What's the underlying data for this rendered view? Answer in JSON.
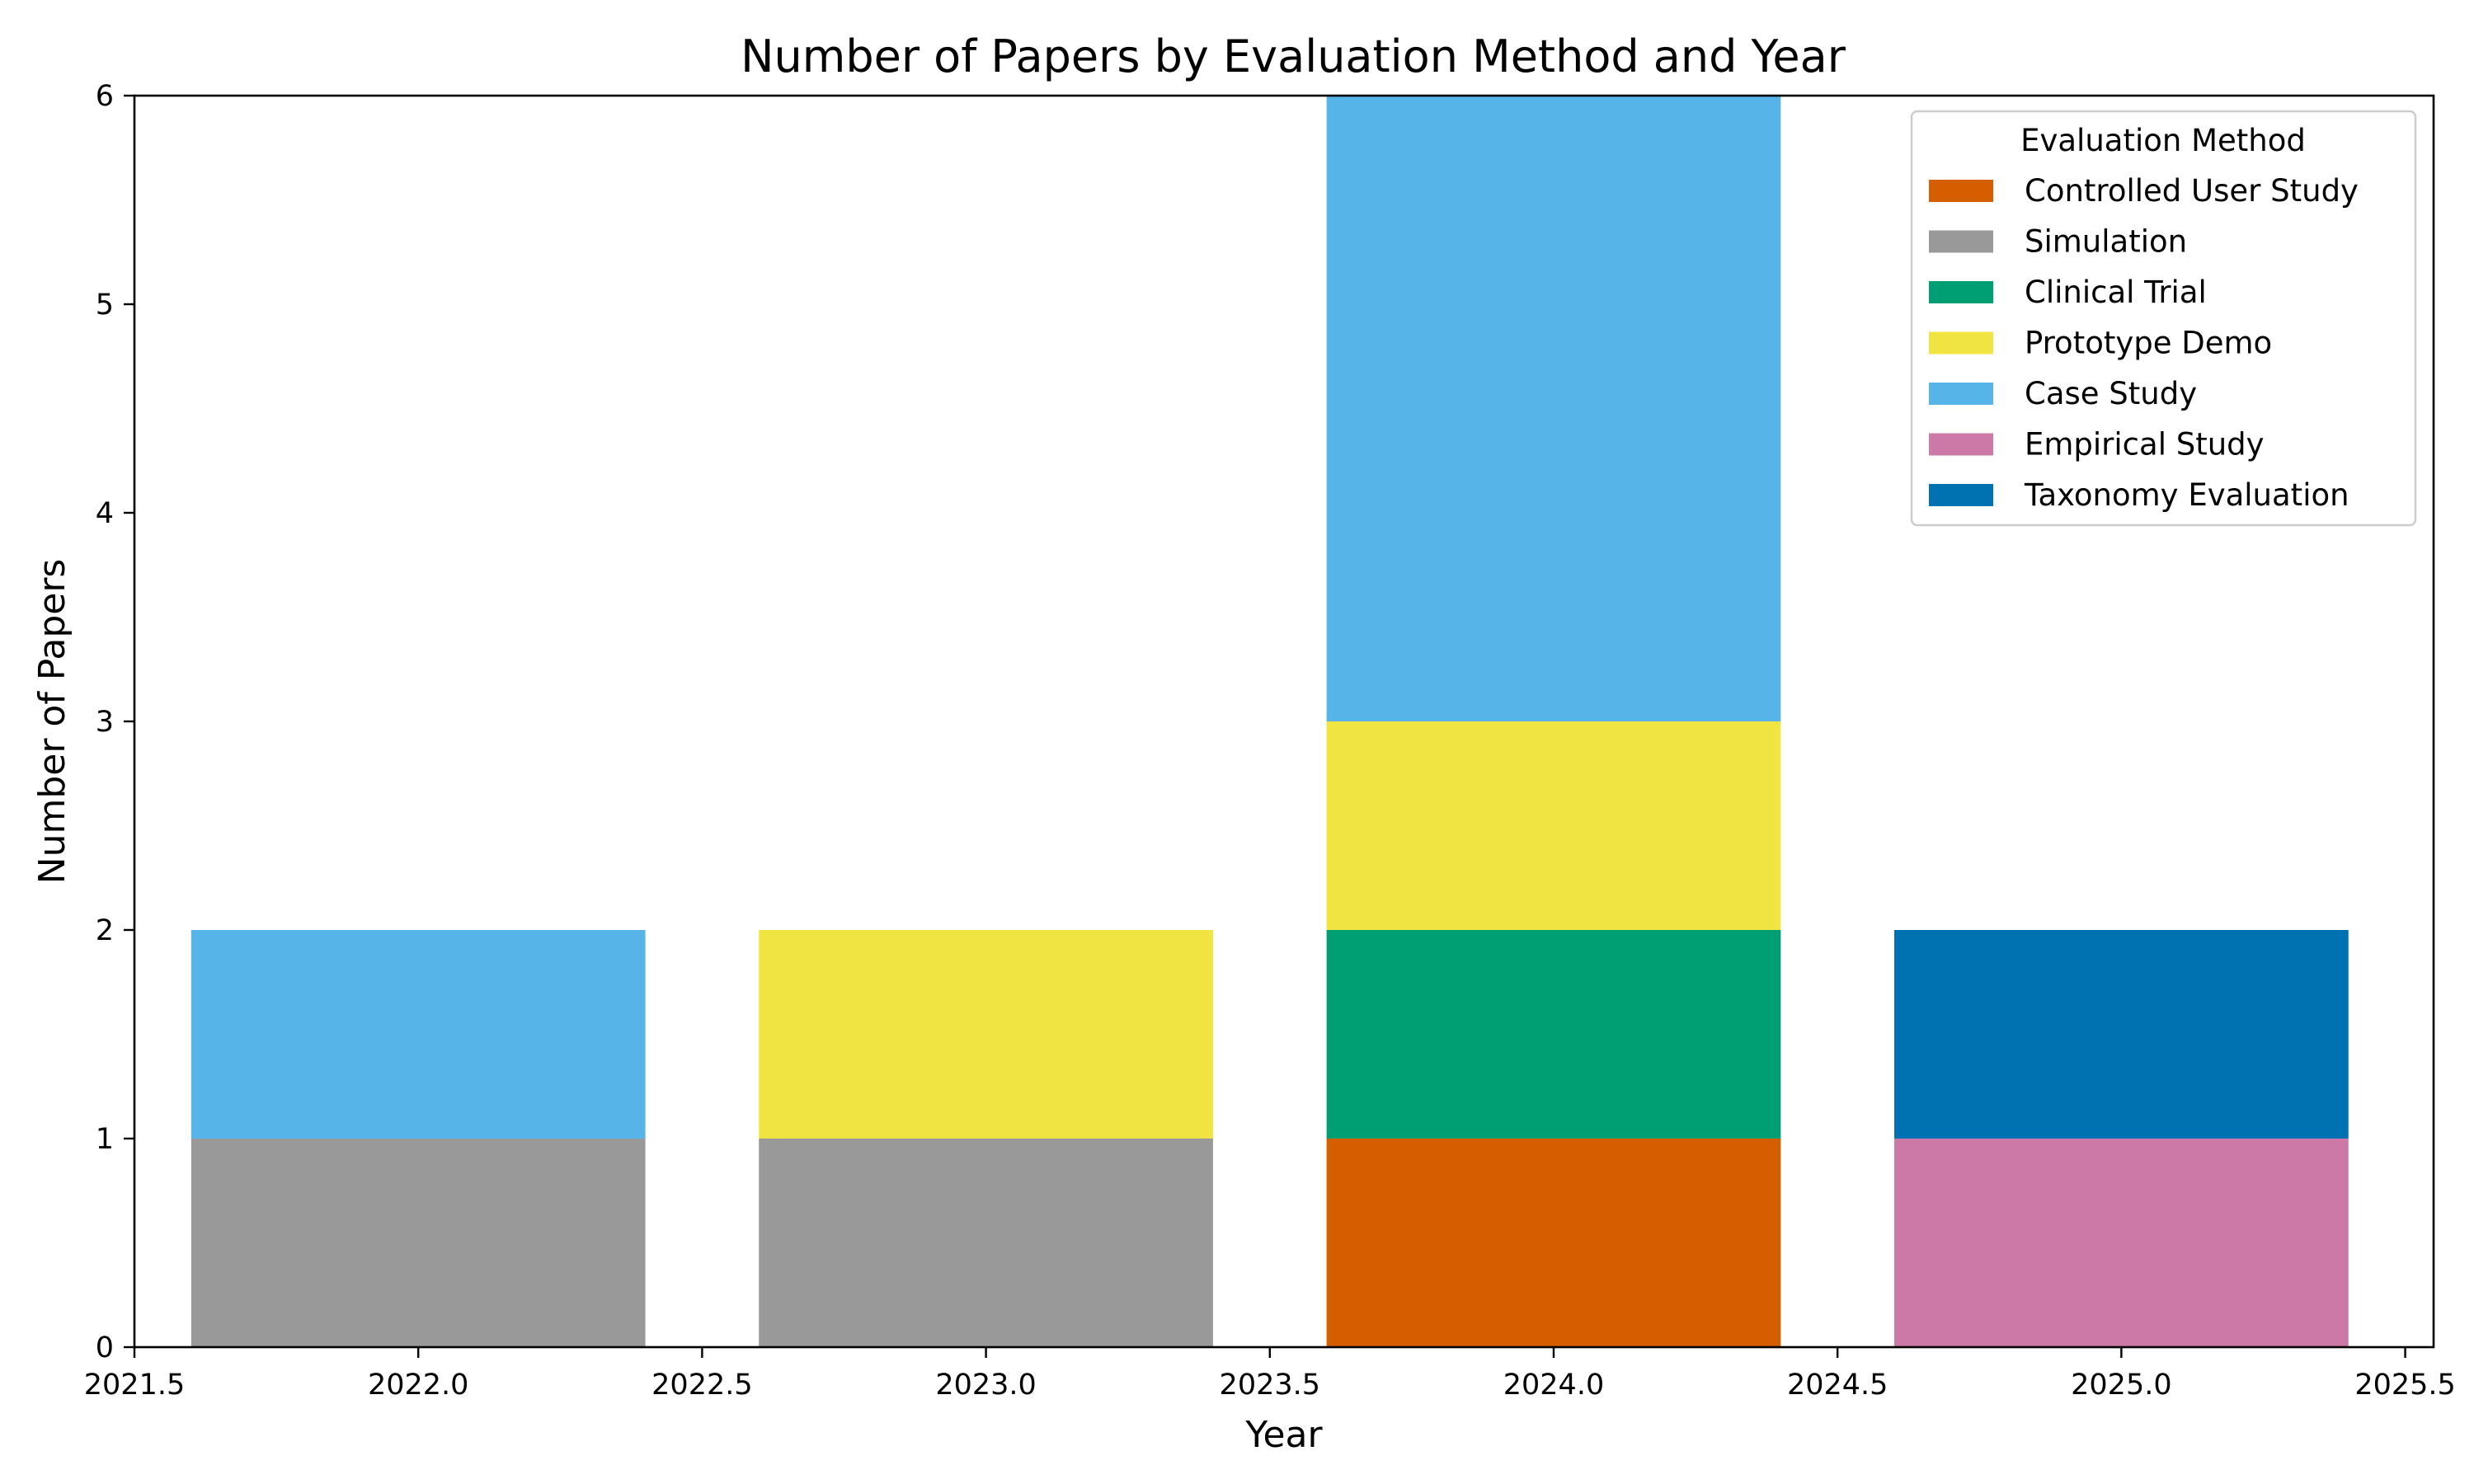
{
  "chart_data": {
    "type": "bar",
    "stacked": true,
    "title": "Number of Papers by Evaluation Method and Year",
    "xlabel": "Year",
    "ylabel": "Number of Papers",
    "x": [
      2022,
      2023,
      2024,
      2025
    ],
    "bar_width": 0.8,
    "xlim": [
      2021.5,
      2025.55
    ],
    "ylim": [
      0,
      6
    ],
    "xticks": [
      "2021.5",
      "2022.0",
      "2022.5",
      "2023.0",
      "2023.5",
      "2024.0",
      "2024.5",
      "2025.0",
      "2025.5"
    ],
    "yticks": [
      "0",
      "1",
      "2",
      "3",
      "4",
      "5",
      "6"
    ],
    "grid": false,
    "legend": {
      "title": "Evaluation Method",
      "placement": "top-right"
    },
    "series": [
      {
        "name": "Controlled User Study",
        "color": "#d55e00",
        "values": [
          0,
          0,
          1,
          0
        ]
      },
      {
        "name": "Simulation",
        "color": "#999999",
        "values": [
          1,
          1,
          0,
          0
        ]
      },
      {
        "name": "Clinical Trial",
        "color": "#009e73",
        "values": [
          0,
          0,
          1,
          0
        ]
      },
      {
        "name": "Prototype Demo",
        "color": "#f0e442",
        "values": [
          0,
          1,
          1,
          0
        ]
      },
      {
        "name": "Case Study",
        "color": "#56b4e9",
        "values": [
          1,
          0,
          3,
          0
        ]
      },
      {
        "name": "Empirical Study",
        "color": "#cc79a7",
        "values": [
          0,
          0,
          0,
          1
        ]
      },
      {
        "name": "Taxonomy Evaluation",
        "color": "#0072b2",
        "values": [
          0,
          0,
          0,
          1
        ]
      }
    ]
  }
}
